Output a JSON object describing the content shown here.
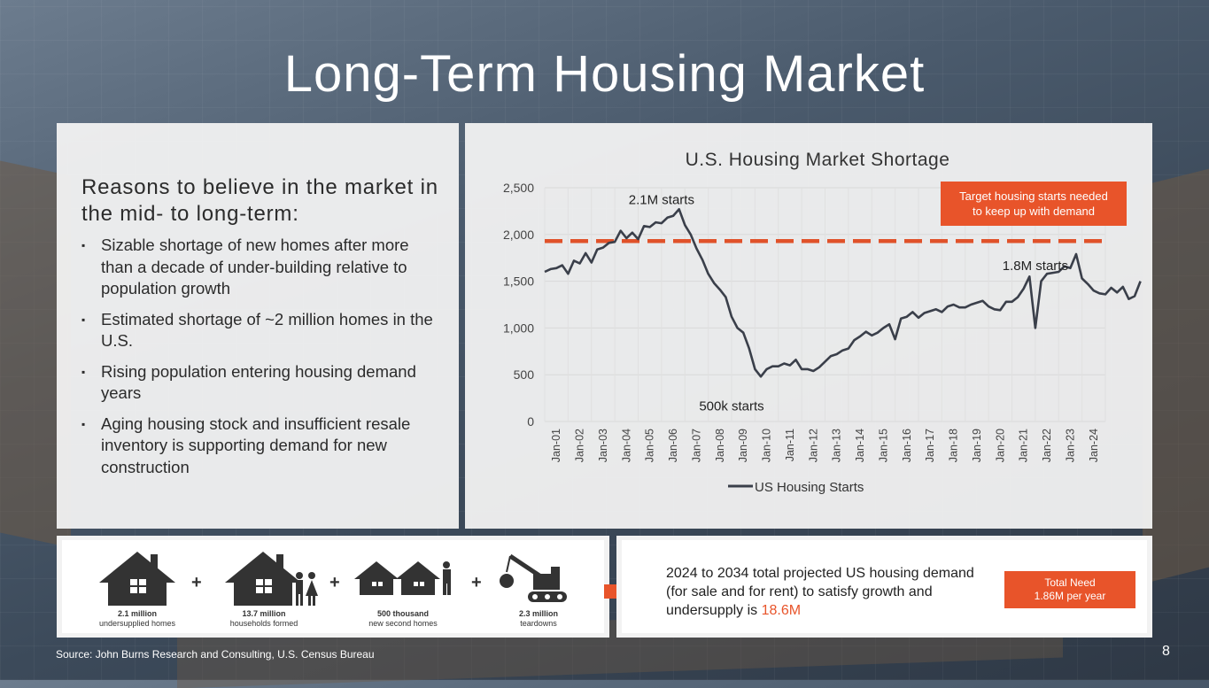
{
  "slide": {
    "title": "Long-Term Housing Market",
    "page_number": "8",
    "source": "Source: John Burns Research and Consulting, U.S. Census Bureau"
  },
  "reasons": {
    "heading": "Reasons to believe in the market in the mid- to long-term:",
    "bullets": [
      "Sizable shortage of new homes after more than a decade of under-building relative to population growth",
      "Estimated shortage of ~2 million homes in the U.S.",
      "Rising population entering housing demand years",
      "Aging housing stock and insufficient resale inventory is supporting demand for new construction"
    ]
  },
  "components": [
    {
      "icon": "house-icon",
      "line1": "2.1 million",
      "line2": "undersupplied homes"
    },
    {
      "icon": "house-family-icon",
      "line1": "13.7 million",
      "line2": "households formed"
    },
    {
      "icon": "second-homes-icon",
      "line1": "500 thousand",
      "line2": "new second homes"
    },
    {
      "icon": "excavator-icon",
      "line1": "2.3 million",
      "line2": "teardowns"
    }
  ],
  "plus_sign": "+",
  "demand": {
    "text_prefix": "2024 to 2034 total projected US housing demand (for sale and for rent) to satisfy growth and undersupply is ",
    "highlight": "18.6M",
    "need_line1": "Total Need",
    "need_line2": "1.86M per year"
  },
  "colors": {
    "accent": "#e8542a",
    "series": "#3a3f4a",
    "target_line": "#e0522a"
  },
  "chart_data": {
    "type": "line",
    "title": "U.S. Housing Market Shortage",
    "ylim": [
      0,
      2500
    ],
    "yticks": [
      0,
      500,
      1000,
      1500,
      2000,
      2500
    ],
    "ytick_labels": [
      "0",
      "500",
      "1,000",
      "1,500",
      "2,000",
      "2,500"
    ],
    "x_categories": [
      "Jan-01",
      "Jan-02",
      "Jan-03",
      "Jan-04",
      "Jan-05",
      "Jan-06",
      "Jan-07",
      "Jan-08",
      "Jan-09",
      "Jan-10",
      "Jan-11",
      "Jan-12",
      "Jan-13",
      "Jan-14",
      "Jan-15",
      "Jan-16",
      "Jan-17",
      "Jan-18",
      "Jan-19",
      "Jan-20",
      "Jan-21",
      "Jan-22",
      "Jan-23",
      "Jan-24"
    ],
    "legend": "US Housing Starts",
    "target": {
      "value": 1930,
      "label": "Target housing starts needed to keep up with demand"
    },
    "annotations": [
      {
        "text": "2.1M starts",
        "x": 5.0,
        "y": 2270
      },
      {
        "text": "500k starts",
        "x": 8.0,
        "y": 480
      },
      {
        "text": "1.8M starts",
        "x": 21.0,
        "y": 1790
      }
    ],
    "series": [
      {
        "name": "US Housing Starts",
        "x_start": 0,
        "x_step": 0.25,
        "values": [
          1600,
          1630,
          1640,
          1670,
          1580,
          1720,
          1690,
          1800,
          1700,
          1840,
          1860,
          1910,
          1920,
          2040,
          1960,
          2020,
          1950,
          2090,
          2080,
          2130,
          2120,
          2180,
          2200,
          2270,
          2100,
          2000,
          1850,
          1730,
          1580,
          1480,
          1410,
          1330,
          1120,
          1000,
          950,
          780,
          560,
          480,
          560,
          590,
          590,
          620,
          600,
          660,
          560,
          560,
          540,
          580,
          640,
          700,
          720,
          760,
          780,
          870,
          910,
          960,
          920,
          950,
          1000,
          1040,
          880,
          1100,
          1120,
          1170,
          1110,
          1160,
          1180,
          1200,
          1170,
          1230,
          1250,
          1220,
          1220,
          1250,
          1270,
          1290,
          1230,
          1200,
          1190,
          1280,
          1280,
          1330,
          1420,
          1550,
          1000,
          1500,
          1580,
          1590,
          1600,
          1660,
          1640,
          1790,
          1530,
          1470,
          1400,
          1370,
          1360,
          1430,
          1380,
          1440,
          1310,
          1340,
          1500
        ]
      }
    ]
  }
}
